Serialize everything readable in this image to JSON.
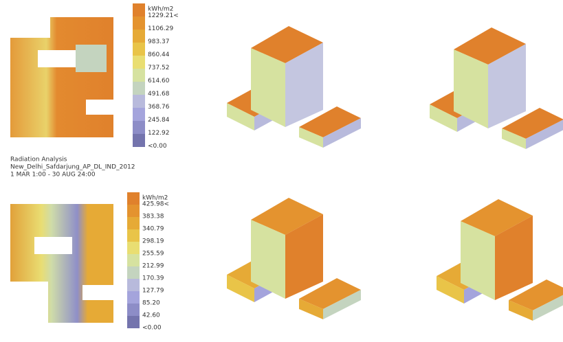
{
  "legends": [
    {
      "unit": "kWh/m2",
      "labels": [
        "1229.21<",
        "1106.29",
        "983.37",
        "860.44",
        "737.52",
        "614.60",
        "491.68",
        "368.76",
        "245.84",
        "122.92",
        "<0.00"
      ]
    },
    {
      "unit": "kWh/m2",
      "labels": [
        "425.98<",
        "383.38",
        "340.79",
        "298.19",
        "255.59",
        "212.99",
        "170.39",
        "127.79",
        "85.20",
        "42.60",
        "<0.00"
      ]
    }
  ],
  "colors": [
    "#e0812c",
    "#e4932f",
    "#e6aa36",
    "#e9c448",
    "#e9de72",
    "#d6e2a0",
    "#c4d4bf",
    "#b8badc",
    "#a4a4dc",
    "#8d8dc7",
    "#7474ad"
  ],
  "caption": {
    "title": "Radiation Analysis",
    "location": "New_Delhi_Safdarjung_AP_DL_IND_2012",
    "period": "1 MAR 1:00 - 30 AUG 24:00"
  }
}
